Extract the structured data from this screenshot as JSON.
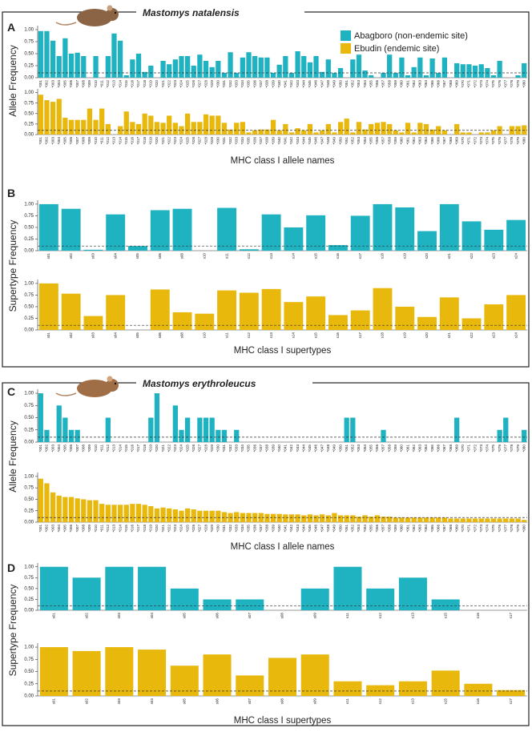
{
  "sections": [
    {
      "title": "Mastomys natalensis"
    },
    {
      "title": "Mastomys erythroleucus"
    }
  ],
  "chart_data": [
    {
      "type": "bar",
      "panel": "A",
      "ylabel": "Allele Frequency",
      "xlabel": "MHC class I allele names",
      "legend": "top-right",
      "categories": [
        "*001",
        "*002",
        "*003",
        "*004",
        "*005",
        "*006",
        "*007",
        "*008",
        "*009",
        "*010",
        "*011",
        "*012",
        "*013",
        "*014",
        "*015",
        "*016",
        "*017",
        "*018",
        "*019",
        "*020",
        "*021",
        "*022",
        "*023",
        "*024",
        "*025",
        "*026",
        "*027",
        "*028",
        "*029",
        "*030",
        "*031",
        "*032",
        "*033",
        "*034",
        "*035",
        "*036",
        "*037",
        "*038",
        "*039",
        "*040",
        "*041",
        "*042",
        "*043",
        "*044",
        "*045",
        "*046",
        "*047",
        "*048",
        "*049",
        "*050",
        "*051",
        "*052",
        "*053",
        "*054",
        "*055",
        "*056",
        "*057",
        "*058",
        "*059",
        "*060",
        "*061",
        "*062",
        "*063",
        "*064",
        "*065",
        "*066",
        "*067",
        "*068",
        "*069",
        "*070",
        "*071",
        "*072",
        "*073",
        "*074",
        "*075",
        "*076",
        "*077",
        "*078",
        "*079",
        "*080"
      ],
      "series": [
        {
          "name": "Abagboro (non-endemic site)",
          "color": "#1fb3c1",
          "values": [
            0.97,
            0.97,
            0.77,
            0.45,
            0.82,
            0.5,
            0.52,
            0.45,
            0,
            0.45,
            0,
            0.45,
            0.92,
            0.77,
            0.05,
            0.38,
            0.5,
            0.12,
            0.25,
            0,
            0.35,
            0.28,
            0.38,
            0.45,
            0.45,
            0.25,
            0.48,
            0.35,
            0.22,
            0.35,
            0.1,
            0.53,
            0.1,
            0.42,
            0.53,
            0.45,
            0.42,
            0.42,
            0.1,
            0.27,
            0.45,
            0.1,
            0.55,
            0.45,
            0.32,
            0.45,
            0.12,
            0.38,
            0.1,
            0.2,
            0,
            0.38,
            0.48,
            0.15,
            0.05,
            0,
            0.1,
            0.48,
            0.1,
            0.42,
            0.05,
            0.22,
            0.42,
            0.05,
            0.4,
            0.1,
            0.42,
            0,
            0.3,
            0.28,
            0.28,
            0.25,
            0.28,
            0.2,
            0.05,
            0.35,
            0,
            0,
            0.05,
            0.3
          ]
        },
        {
          "name": "Ebudin (endemic site)",
          "color": "#e8b80c",
          "values": [
            0.95,
            0.82,
            0.78,
            0.85,
            0.4,
            0.35,
            0.35,
            0.35,
            0.62,
            0.35,
            0.62,
            0.25,
            0,
            0.2,
            0.55,
            0.3,
            0.25,
            0.5,
            0.45,
            0.3,
            0.28,
            0.45,
            0.28,
            0.2,
            0.5,
            0.3,
            0.3,
            0.48,
            0.45,
            0.45,
            0.28,
            0.12,
            0.28,
            0.3,
            0.05,
            0.1,
            0.12,
            0.12,
            0.35,
            0.1,
            0.25,
            0.05,
            0.15,
            0.1,
            0.25,
            0.05,
            0.1,
            0.25,
            0.05,
            0.3,
            0.38,
            0.05,
            0.3,
            0.12,
            0.25,
            0.28,
            0.3,
            0.25,
            0.1,
            0.05,
            0.28,
            0.05,
            0.28,
            0.25,
            0.12,
            0.2,
            0.1,
            0,
            0.25,
            0.05,
            0.05,
            0,
            0.05,
            0.05,
            0.1,
            0.2,
            0,
            0.2,
            0.2,
            0.22
          ]
        }
      ],
      "ylim": [
        0,
        1.05
      ],
      "yticks": [
        {
          "value": 0,
          "label": "0.00"
        },
        {
          "value": 0.25,
          "label": "0.25"
        },
        {
          "value": 0.5,
          "label": "0.50"
        },
        {
          "value": 0.75,
          "label": "0.75"
        },
        {
          "value": 1,
          "label": "1.00"
        }
      ],
      "threshold": 0.1
    },
    {
      "type": "bar",
      "panel": "B",
      "ylabel": "Supertype Frequency",
      "xlabel": "MHC class I supertypes",
      "categories": [
        "s01",
        "s02",
        "s03",
        "s04",
        "s05",
        "s06",
        "s08",
        "s10",
        "s11",
        "s12",
        "s13",
        "s14",
        "s15",
        "s16",
        "s17",
        "s18",
        "s19",
        "s20",
        "s21",
        "s22",
        "s23",
        "s24"
      ],
      "series": [
        {
          "color": "#1fb3c1",
          "values": [
            1.0,
            0.9,
            0.02,
            0.78,
            0.1,
            0.87,
            0.9,
            0,
            0.92,
            0.03,
            0.78,
            0.5,
            0.76,
            0.12,
            0.75,
            1.0,
            0.93,
            0.42,
            1.0,
            0.63,
            0.45,
            0.66
          ]
        },
        {
          "color": "#e8b80c",
          "values": [
            1.0,
            0.78,
            0.3,
            0.75,
            0,
            0.87,
            0.38,
            0.35,
            0.85,
            0.8,
            0.88,
            0.6,
            0.72,
            0.32,
            0.42,
            0.9,
            0.5,
            0.28,
            0.7,
            0.25,
            0.55,
            0.75
          ]
        }
      ],
      "ylim": [
        0,
        1.05
      ],
      "yticks": [
        {
          "value": 0,
          "label": "0.00"
        },
        {
          "value": 0.25,
          "label": "0.25"
        },
        {
          "value": 0.5,
          "label": "0.50"
        },
        {
          "value": 0.75,
          "label": "0.75"
        },
        {
          "value": 1,
          "label": "1.00"
        }
      ],
      "threshold": 0.1
    },
    {
      "type": "bar",
      "panel": "C",
      "ylabel": "Allele Frequency",
      "xlabel": "MHC class I allele names",
      "categories": [
        "*001",
        "*002",
        "*003",
        "*004",
        "*005",
        "*006",
        "*007",
        "*008",
        "*009",
        "*010",
        "*011",
        "*012",
        "*013",
        "*014",
        "*015",
        "*016",
        "*017",
        "*018",
        "*019",
        "*020",
        "*021",
        "*022",
        "*023",
        "*024",
        "*025",
        "*026",
        "*027",
        "*028",
        "*029",
        "*030",
        "*031",
        "*032",
        "*033",
        "*034",
        "*035",
        "*036",
        "*037",
        "*038",
        "*039",
        "*040",
        "*041",
        "*042",
        "*043",
        "*044",
        "*045",
        "*046",
        "*047",
        "*048",
        "*049",
        "*050",
        "*051",
        "*052",
        "*053",
        "*054",
        "*055",
        "*056",
        "*057",
        "*058",
        "*059",
        "*060",
        "*061",
        "*062",
        "*063",
        "*064",
        "*065",
        "*066",
        "*067",
        "*068",
        "*069",
        "*070",
        "*071",
        "*072",
        "*073",
        "*074",
        "*075",
        "*076",
        "*077",
        "*078",
        "*079",
        "*080"
      ],
      "series": [
        {
          "color": "#1fb3c1",
          "values": [
            1,
            0.25,
            0,
            0.75,
            0.5,
            0.25,
            0.25,
            0,
            0,
            0,
            0,
            0.5,
            0,
            0,
            0,
            0,
            0,
            0,
            0.5,
            1,
            0,
            0,
            0.75,
            0.25,
            0.5,
            0,
            0.5,
            0.5,
            0.5,
            0.25,
            0.25,
            0,
            0.25,
            0,
            0,
            0,
            0,
            0,
            0,
            0,
            0,
            0,
            0,
            0,
            0,
            0,
            0,
            0,
            0,
            0,
            0.5,
            0.5,
            0,
            0,
            0,
            0,
            0.25,
            0,
            0,
            0,
            0,
            0,
            0,
            0,
            0,
            0,
            0,
            0,
            0.5,
            0,
            0,
            0,
            0,
            0,
            0,
            0.25,
            0.5,
            0,
            0,
            0.25
          ]
        },
        {
          "color": "#e8b80c",
          "values": [
            0.95,
            0.85,
            0.65,
            0.58,
            0.55,
            0.55,
            0.52,
            0.5,
            0.48,
            0.48,
            0.4,
            0.38,
            0.38,
            0.38,
            0.38,
            0.4,
            0.4,
            0.38,
            0.35,
            0.3,
            0.32,
            0.3,
            0.28,
            0.25,
            0.3,
            0.28,
            0.25,
            0.25,
            0.25,
            0.25,
            0.22,
            0.2,
            0.22,
            0.2,
            0.2,
            0.2,
            0.2,
            0.18,
            0.18,
            0.18,
            0.17,
            0.17,
            0.17,
            0.15,
            0.17,
            0.15,
            0.17,
            0.15,
            0.2,
            0.15,
            0.15,
            0.15,
            0.12,
            0.15,
            0.12,
            0.15,
            0.12,
            0.12,
            0.1,
            0.1,
            0.1,
            0.1,
            0.1,
            0.1,
            0.1,
            0.1,
            0.1,
            0.08,
            0.08,
            0.08,
            0.08,
            0.08,
            0.08,
            0.08,
            0.08,
            0.08,
            0.08,
            0.08,
            0.08,
            0.05
          ]
        }
      ],
      "ylim": [
        0,
        1.05
      ],
      "yticks": [
        {
          "value": 0,
          "label": "0.00"
        },
        {
          "value": 0.25,
          "label": "0.25"
        },
        {
          "value": 0.5,
          "label": "0.50"
        },
        {
          "value": 0.75,
          "label": "0.75"
        },
        {
          "value": 1,
          "label": "1.00"
        }
      ],
      "threshold": 0.1
    },
    {
      "type": "bar",
      "panel": "D",
      "ylabel": "Supertype Frequency",
      "xlabel": "MHC class I supertypes",
      "categories": [
        "s01",
        "s02",
        "s03",
        "s04",
        "s05",
        "s06",
        "s07",
        "s08",
        "s09",
        "s11",
        "s12",
        "s13",
        "s15",
        "s16",
        "s17"
      ],
      "series": [
        {
          "color": "#1fb3c1",
          "values": [
            1,
            0.75,
            1,
            1,
            0.5,
            0.25,
            0.25,
            0,
            0.5,
            1,
            0.5,
            0.75,
            0.25,
            0,
            0
          ]
        },
        {
          "color": "#e8b80c",
          "values": [
            1,
            0.92,
            1,
            0.95,
            0.62,
            0.85,
            0.42,
            0.78,
            0.85,
            0.3,
            0.22,
            0.3,
            0.52,
            0.25,
            0.12
          ]
        }
      ],
      "ylim": [
        0,
        1.05
      ],
      "yticks": [
        {
          "value": 0,
          "label": "0.00"
        },
        {
          "value": 0.25,
          "label": "0.25"
        },
        {
          "value": 0.5,
          "label": "0.50"
        },
        {
          "value": 0.75,
          "label": "0.75"
        },
        {
          "value": 1,
          "label": "1.00"
        }
      ],
      "threshold": 0.1
    }
  ]
}
